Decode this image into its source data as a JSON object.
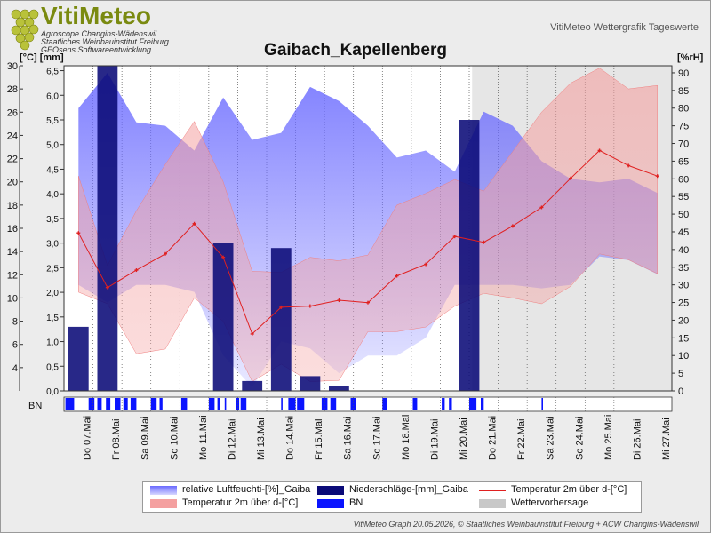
{
  "header": {
    "logo_name": "VitiMeteo",
    "logo_line1": "Agroscope Changins-Wädenswil",
    "logo_line2": "Staatliches Weinbauinstitut Freiburg",
    "logo_line3": "GEOsens Softwareentwicklung",
    "right_label": "VitiMeteo Wettergrafik Tageswerte"
  },
  "footer": "VitiMeteo Graph 20.05.2026, © Staatliches Weinbauinstitut Freiburg + ACW Changins-Wädenswil",
  "colors": {
    "humidity": "#6a6aff",
    "precip": "#0a0a78",
    "temp_line": "#e02020",
    "temp_band": "#f4a0a0",
    "bn": "#0a14ff",
    "forecast": "#c8c8c8"
  },
  "chart_data": {
    "type": "line",
    "title": "Gaibach_Kapellenberg",
    "left_axis_label": "[°C] [mm]",
    "right_axis_label": "[%rH]",
    "temp_axis": {
      "min": 2,
      "max": 30,
      "ticks": [
        4,
        6,
        8,
        10,
        12,
        14,
        16,
        18,
        20,
        22,
        24,
        26,
        28,
        30
      ]
    },
    "precip_axis": {
      "min": 0,
      "max": 6.6,
      "ticks": [
        "0,0",
        "0,5",
        "1,0",
        "1,5",
        "2,0",
        "2,5",
        "3,0",
        "3,5",
        "4,0",
        "4,5",
        "5,0",
        "5,5",
        "6,0",
        "6,5"
      ]
    },
    "humidity_axis": {
      "min": 0,
      "max": 92,
      "ticks": [
        0,
        5,
        10,
        15,
        20,
        25,
        30,
        35,
        40,
        45,
        50,
        55,
        60,
        65,
        70,
        75,
        80,
        85,
        90
      ]
    },
    "x_labels": [
      "Do 07.Mai",
      "Fr 08.Mai",
      "Sa 09.Mai",
      "So 10.Mai",
      "Mo 11.Mai",
      "Di 12.Mai",
      "Mi 13.Mai",
      "Do 14.Mai",
      "Fr 15.Mai",
      "Sa 16.Mai",
      "So 17.Mai",
      "Mo 18.Mai",
      "Di 19.Mai",
      "Mi 20.Mai",
      "Do 21.Mai",
      "Fr 22.Mai",
      "Sa 23.Mai",
      "So 24.Mai",
      "Mo 25.Mai",
      "Di 26.Mai",
      "Mi 27.Mai"
    ],
    "forecast_start_day": 14.1,
    "temperature_mean": [
      {
        "day": 0.5,
        "value": 15.6
      },
      {
        "day": 1.5,
        "value": 10.9
      },
      {
        "day": 2.5,
        "value": 12.4
      },
      {
        "day": 3.5,
        "value": 13.8
      },
      {
        "day": 4.5,
        "value": 16.4
      },
      {
        "day": 5.5,
        "value": 13.5
      },
      {
        "day": 6.5,
        "value": 6.9
      },
      {
        "day": 7.5,
        "value": 9.2
      },
      {
        "day": 8.5,
        "value": 9.3
      },
      {
        "day": 9.5,
        "value": 9.8
      },
      {
        "day": 10.5,
        "value": 9.6
      },
      {
        "day": 11.5,
        "value": 11.9
      },
      {
        "day": 12.5,
        "value": 12.9
      },
      {
        "day": 13.5,
        "value": 15.3
      },
      {
        "day": 14.5,
        "value": 14.8
      },
      {
        "day": 15.5,
        "value": 16.2
      },
      {
        "day": 16.5,
        "value": 17.8
      },
      {
        "day": 17.5,
        "value": 20.3
      },
      {
        "day": 18.5,
        "value": 22.7
      },
      {
        "day": 19.5,
        "value": 21.4
      },
      {
        "day": 20.5,
        "value": 20.5
      }
    ],
    "temperature_min": [
      {
        "day": 0.5,
        "value": 10.5
      },
      {
        "day": 1.5,
        "value": 9.5
      },
      {
        "day": 2.5,
        "value": 5.2
      },
      {
        "day": 3.5,
        "value": 5.6
      },
      {
        "day": 4.5,
        "value": 10.0
      },
      {
        "day": 5.5,
        "value": 8.0
      },
      {
        "day": 6.5,
        "value": 2.8
      },
      {
        "day": 7.5,
        "value": 4.3
      },
      {
        "day": 8.5,
        "value": 2.8
      },
      {
        "day": 9.5,
        "value": 2.9
      },
      {
        "day": 10.5,
        "value": 7.1
      },
      {
        "day": 11.5,
        "value": 7.1
      },
      {
        "day": 12.5,
        "value": 7.5
      },
      {
        "day": 13.5,
        "value": 9.3
      },
      {
        "day": 14.5,
        "value": 10.4
      },
      {
        "day": 15.5,
        "value": 10.0
      },
      {
        "day": 16.5,
        "value": 9.5
      },
      {
        "day": 17.5,
        "value": 11.0
      },
      {
        "day": 18.5,
        "value": 13.8
      },
      {
        "day": 19.5,
        "value": 13.3
      },
      {
        "day": 20.5,
        "value": 12.1
      }
    ],
    "temperature_max": [
      {
        "day": 0.5,
        "value": 20.5
      },
      {
        "day": 1.5,
        "value": 12.8
      },
      {
        "day": 2.5,
        "value": 17.5
      },
      {
        "day": 3.5,
        "value": 21.5
      },
      {
        "day": 4.5,
        "value": 25.2
      },
      {
        "day": 5.5,
        "value": 20.0
      },
      {
        "day": 6.5,
        "value": 12.3
      },
      {
        "day": 7.5,
        "value": 12.2
      },
      {
        "day": 8.5,
        "value": 13.5
      },
      {
        "day": 9.5,
        "value": 13.2
      },
      {
        "day": 10.5,
        "value": 13.7
      },
      {
        "day": 11.5,
        "value": 18.0
      },
      {
        "day": 12.5,
        "value": 19.0
      },
      {
        "day": 13.5,
        "value": 20.2
      },
      {
        "day": 14.5,
        "value": 19.2
      },
      {
        "day": 15.5,
        "value": 22.6
      },
      {
        "day": 16.5,
        "value": 26.0
      },
      {
        "day": 17.5,
        "value": 28.5
      },
      {
        "day": 18.5,
        "value": 29.8
      },
      {
        "day": 19.5,
        "value": 28.0
      },
      {
        "day": 20.5,
        "value": 28.3
      }
    ],
    "humidity_max": [
      {
        "day": 0.5,
        "value": 80
      },
      {
        "day": 1.5,
        "value": 90
      },
      {
        "day": 2.5,
        "value": 76
      },
      {
        "day": 3.5,
        "value": 75
      },
      {
        "day": 4.5,
        "value": 68
      },
      {
        "day": 5.5,
        "value": 83
      },
      {
        "day": 6.5,
        "value": 71
      },
      {
        "day": 7.5,
        "value": 73
      },
      {
        "day": 8.5,
        "value": 86
      },
      {
        "day": 9.5,
        "value": 82
      },
      {
        "day": 10.5,
        "value": 75
      },
      {
        "day": 11.5,
        "value": 66
      },
      {
        "day": 12.5,
        "value": 68
      },
      {
        "day": 13.5,
        "value": 62
      },
      {
        "day": 14.5,
        "value": 79
      },
      {
        "day": 15.5,
        "value": 75
      },
      {
        "day": 16.5,
        "value": 65
      },
      {
        "day": 17.5,
        "value": 60
      },
      {
        "day": 18.5,
        "value": 59
      },
      {
        "day": 19.5,
        "value": 60
      },
      {
        "day": 20.5,
        "value": 56
      }
    ],
    "humidity_min": [
      {
        "day": 0.5,
        "value": 30
      },
      {
        "day": 1.5,
        "value": 25
      },
      {
        "day": 2.5,
        "value": 30
      },
      {
        "day": 3.5,
        "value": 30
      },
      {
        "day": 4.5,
        "value": 28
      },
      {
        "day": 5.5,
        "value": 10
      },
      {
        "day": 6.5,
        "value": 1
      },
      {
        "day": 7.5,
        "value": 14
      },
      {
        "day": 8.5,
        "value": 12
      },
      {
        "day": 9.5,
        "value": 5
      },
      {
        "day": 10.5,
        "value": 10
      },
      {
        "day": 11.5,
        "value": 10
      },
      {
        "day": 12.5,
        "value": 15
      },
      {
        "day": 13.5,
        "value": 30
      },
      {
        "day": 14.5,
        "value": 30
      },
      {
        "day": 15.5,
        "value": 30
      },
      {
        "day": 16.5,
        "value": 29
      },
      {
        "day": 17.5,
        "value": 30
      },
      {
        "day": 18.5,
        "value": 38
      },
      {
        "day": 19.5,
        "value": 37
      },
      {
        "day": 20.5,
        "value": 33
      }
    ],
    "precipitation": [
      {
        "day": 0.5,
        "value": 1.3
      },
      {
        "day": 1.5,
        "value": 6.6
      },
      {
        "day": 5.5,
        "value": 3.0
      },
      {
        "day": 6.5,
        "value": 0.2
      },
      {
        "day": 7.5,
        "value": 2.9
      },
      {
        "day": 8.5,
        "value": 0.3
      },
      {
        "day": 9.5,
        "value": 0.1
      },
      {
        "day": 14.0,
        "value": 5.5
      }
    ],
    "bn_label": "BN",
    "bn_segments": [
      [
        0.05,
        0.35
      ],
      [
        0.85,
        1.05
      ],
      [
        1.15,
        1.3
      ],
      [
        1.45,
        1.6
      ],
      [
        1.75,
        1.95
      ],
      [
        2.05,
        2.2
      ],
      [
        2.3,
        2.5
      ],
      [
        3.0,
        3.2
      ],
      [
        3.3,
        3.4
      ],
      [
        4.05,
        4.25
      ],
      [
        5.0,
        5.2
      ],
      [
        5.3,
        5.4
      ],
      [
        5.55,
        5.6
      ],
      [
        5.95,
        6.05
      ],
      [
        6.1,
        6.3
      ],
      [
        7.5,
        7.55
      ],
      [
        7.75,
        8.0
      ],
      [
        8.05,
        8.3
      ],
      [
        8.9,
        9.1
      ],
      [
        9.2,
        9.4
      ],
      [
        9.9,
        10.1
      ],
      [
        11.0,
        11.15
      ],
      [
        12.05,
        12.2
      ],
      [
        13.05,
        13.15
      ],
      [
        13.3,
        13.4
      ],
      [
        14.0,
        14.25
      ],
      [
        14.4,
        14.5
      ],
      [
        16.5,
        16.55
      ]
    ],
    "legend": [
      {
        "key": "humidity",
        "label": "relative Luftfeuchti-[%]_Gaiba"
      },
      {
        "key": "precip",
        "label": "Niederschläge-[mm]_Gaiba"
      },
      {
        "key": "temp_line",
        "label": "Temperatur 2m über d-[°C]"
      },
      {
        "key": "temp_band",
        "label": "Temperatur 2m über d-[°C]"
      },
      {
        "key": "bn",
        "label": "BN"
      },
      {
        "key": "forecast",
        "label": "Wettervorhersage"
      }
    ]
  }
}
